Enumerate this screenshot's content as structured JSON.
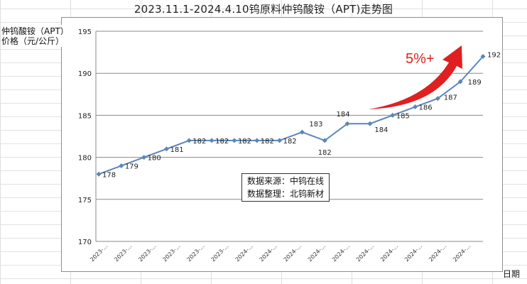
{
  "chart_data": {
    "type": "line",
    "title": "2023.11.1-2024.4.10钨原料仲钨酸铵（APT)走势图",
    "ylabel_lines": [
      "仲钨酸铵（APT）",
      "价格（元/公斤）"
    ],
    "xlabel": "日期",
    "ylim": [
      170,
      195
    ],
    "yticks": [
      170,
      175,
      180,
      185,
      190,
      195
    ],
    "grid": "horizontal",
    "x_tick_labels": [
      "2023-...",
      "2023-...",
      "2023-...",
      "2023-...",
      "2023-...",
      "2023-...",
      "2024-...",
      "2024-...",
      "2024-...",
      "2024-...",
      "2024-...",
      "2024-...",
      "2024-...",
      "2024-...",
      "2024-...",
      "2024-..."
    ],
    "series": [
      {
        "values": [
          178,
          179,
          180,
          181,
          182,
          182,
          182,
          182,
          182,
          183,
          182,
          184,
          184,
          185,
          186,
          187,
          189,
          192
        ]
      }
    ],
    "data_labels": [
      "178",
      "179",
      "180",
      "181",
      "182",
      "182",
      "182",
      "182",
      "182",
      "183",
      "182",
      "184",
      "184",
      "185",
      "186",
      "187",
      "189",
      "192"
    ],
    "line_color": "#5b86b8",
    "annotation": "5%+",
    "annotation_color": "#e02020",
    "note_lines": [
      "数据来源：中钨在线",
      "数据整理：北钨新材"
    ]
  }
}
